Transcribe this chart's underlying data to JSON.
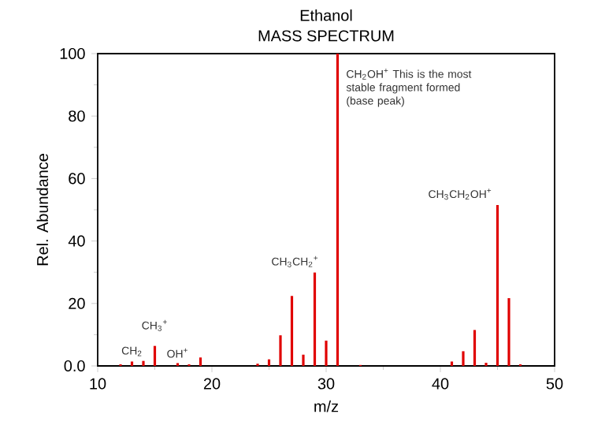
{
  "chart_data": {
    "type": "bar",
    "title": "Ethanol",
    "subtitle": "MASS SPECTRUM",
    "xlabel": "m/z",
    "ylabel": "Rel. Abundance",
    "x": [
      12,
      13,
      14,
      15,
      17,
      18,
      19,
      24,
      25,
      26,
      27,
      28,
      29,
      30,
      31,
      33,
      41,
      42,
      43,
      44,
      45,
      46,
      47
    ],
    "values": [
      0.5,
      1.4,
      1.6,
      6.4,
      0.9,
      0.5,
      2.7,
      0.7,
      2.1,
      9.8,
      22.4,
      3.6,
      29.9,
      8.1,
      100,
      0.3,
      1.4,
      4.7,
      11.5,
      1,
      51.5,
      21.7,
      0.5
    ],
    "color": "#e00000",
    "xlim": [
      10,
      50
    ],
    "xticks": [
      10,
      20,
      30,
      40,
      50
    ],
    "ylim": [
      0,
      100
    ],
    "yticks": [
      {
        "value": 0,
        "label": "0.0"
      },
      20,
      40,
      60,
      80,
      100
    ],
    "grid": false,
    "annotations": [
      {
        "text": "CH$_{2}$",
        "x": 13,
        "y": 1.4
      },
      {
        "text": "CH$_{3}$$^{+}$",
        "x": 15,
        "y": 6.4
      },
      {
        "text": "OH$^{+}$",
        "x": 17,
        "y": 0.9
      },
      {
        "text": "CH$_{3}$CH$_{2}$$^{+}$",
        "x": 29,
        "y": 29.9
      },
      {
        "text": "CH$_{2}$OH$^{+}$ This is the most stable fragment formed (base peak)",
        "x": 31,
        "y": 100
      },
      {
        "text": "CH$_{3}$CH$_{2}$OH$^{+}$",
        "x": 45,
        "y": 51.5
      }
    ]
  }
}
